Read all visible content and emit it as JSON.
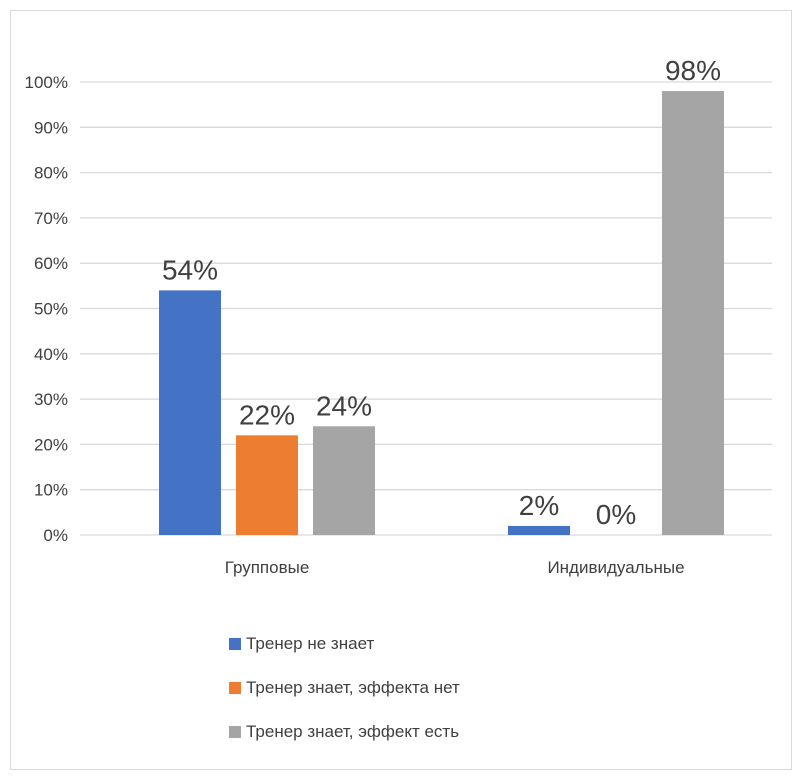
{
  "chart_data": {
    "type": "bar",
    "categories": [
      "Групповые",
      "Индивидуальные"
    ],
    "series": [
      {
        "name": "Тренер не знает",
        "values": [
          54,
          2
        ],
        "color": "#4472C4",
        "labels": [
          "54%",
          "2%"
        ]
      },
      {
        "name": "Тренер знает, эффекта нет",
        "values": [
          22,
          0
        ],
        "color": "#ED7D31",
        "labels": [
          "22%",
          "0%"
        ]
      },
      {
        "name": "Тренер знает, эффект есть",
        "values": [
          24,
          98
        ],
        "color": "#A5A5A5",
        "labels": [
          "24%",
          "98%"
        ]
      }
    ],
    "ylim": [
      0,
      100
    ],
    "yticks": [
      "0%",
      "10%",
      "20%",
      "30%",
      "40%",
      "50%",
      "60%",
      "70%",
      "80%",
      "90%",
      "100%"
    ],
    "ytick_values": [
      0,
      10,
      20,
      30,
      40,
      50,
      60,
      70,
      80,
      90,
      100
    ],
    "grid": true,
    "legend_position": "bottom",
    "gridline_color": "#D9D9D9",
    "border_color": "#D9D9D9"
  }
}
